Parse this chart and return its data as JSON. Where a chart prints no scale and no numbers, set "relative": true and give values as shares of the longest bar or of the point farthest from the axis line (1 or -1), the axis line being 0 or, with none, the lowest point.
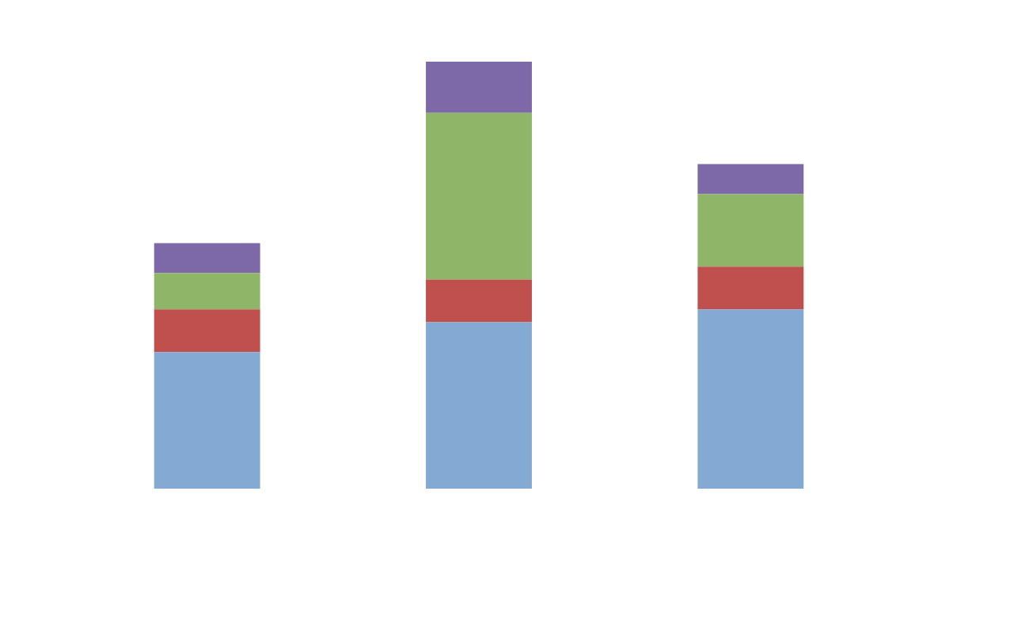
{
  "chart_data": {
    "type": "bar",
    "stacked": true,
    "relative": true,
    "categories": [
      null,
      null,
      null
    ],
    "series": [
      {
        "color": "#84aad4",
        "values": [
          0.32,
          0.39,
          0.42
        ]
      },
      {
        "color": "#c0504d",
        "values": [
          0.1,
          0.1,
          0.1
        ]
      },
      {
        "color": "#8fb568",
        "values": [
          0.085,
          0.39,
          0.17
        ]
      },
      {
        "color": "#7d68a8",
        "values": [
          0.07,
          0.12,
          0.07
        ]
      }
    ],
    "legend": false
  }
}
